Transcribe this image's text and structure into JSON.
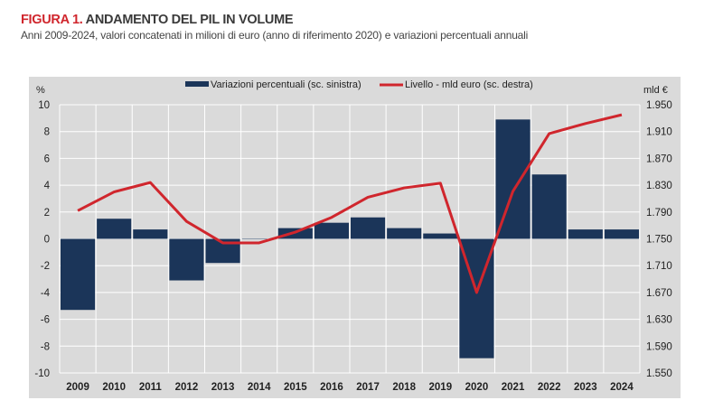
{
  "header": {
    "figure_label": "FIGURA 1.",
    "title": "ANDAMENTO DEL PIL IN VOLUME",
    "subtitle": "Anni 2009-2024, valori concatenati in milioni di euro (anno di riferimento 2020) e variazioni percentuali annuali"
  },
  "chart_data": {
    "type": "bar+line",
    "categories": [
      "2009",
      "2010",
      "2011",
      "2012",
      "2013",
      "2014",
      "2015",
      "2016",
      "2017",
      "2018",
      "2019",
      "2020",
      "2021",
      "2022",
      "2023",
      "2024"
    ],
    "series": [
      {
        "name": "Variazioni percentuali (sc. sinistra)",
        "type": "bar",
        "axis": "left",
        "color": "#1b3559",
        "values": [
          -5.3,
          1.5,
          0.7,
          -3.1,
          -1.8,
          0.0,
          0.8,
          1.2,
          1.6,
          0.8,
          0.4,
          -8.9,
          8.9,
          4.8,
          0.7,
          0.7
        ]
      },
      {
        "name": "Livello - mld euro (sc. destra)",
        "type": "line",
        "axis": "right",
        "color": "#d0262d",
        "values": [
          1792,
          1820,
          1834,
          1776,
          1744,
          1744,
          1760,
          1782,
          1812,
          1826,
          1833,
          1670,
          1821,
          1907,
          1922,
          1935
        ]
      }
    ],
    "left_axis": {
      "label": "%",
      "ylim": [
        -10,
        10
      ],
      "ticks": [
        "10",
        "8",
        "6",
        "4",
        "2",
        "0",
        "-2",
        "-4",
        "-6",
        "-8",
        "-10"
      ]
    },
    "right_axis": {
      "label": "mld €",
      "ylim": [
        1550,
        1950
      ],
      "ticks": [
        "1.950",
        "1.910",
        "1.870",
        "1.830",
        "1.790",
        "1.750",
        "1.710",
        "1.670",
        "1.630",
        "1.590",
        "1.550"
      ]
    },
    "grid": true,
    "legend": "top"
  }
}
